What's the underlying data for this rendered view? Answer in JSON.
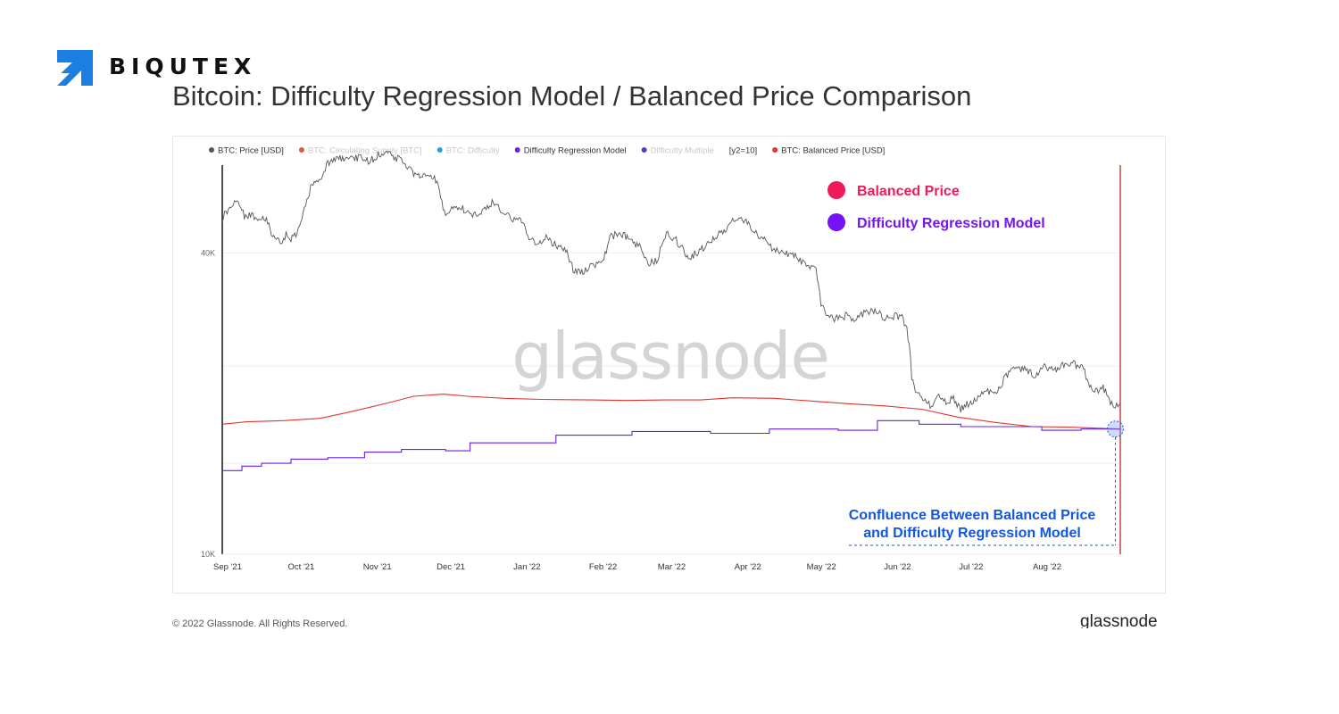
{
  "brand": {
    "name": "BIQUTEX",
    "accent": "#1a7fe0"
  },
  "page": {
    "title": "Bitcoin: Difficulty Regression Model / Balanced Price Comparison"
  },
  "footer": {
    "copyright": "© 2022 Glassnode. All Rights Reserved.",
    "brand": "glassnode"
  },
  "chart_data": {
    "type": "line",
    "title": "Bitcoin: Difficulty Regression Model / Balanced Price Comparison",
    "xlabel": "",
    "ylabel": "",
    "y_scale": "log",
    "ylim": [
      10000,
      60000
    ],
    "y_ticks": [
      {
        "value": 10000,
        "label": "10K"
      },
      {
        "value": 40000,
        "label": "40K"
      }
    ],
    "x_range": [
      0,
      366
    ],
    "x_ticks": [
      {
        "day": 0,
        "label": "Sep '21"
      },
      {
        "day": 30,
        "label": "Oct '21"
      },
      {
        "day": 61,
        "label": "Nov '21"
      },
      {
        "day": 91,
        "label": "Dec '21"
      },
      {
        "day": 122,
        "label": "Jan '22"
      },
      {
        "day": 153,
        "label": "Feb '22"
      },
      {
        "day": 181,
        "label": "Mar '22"
      },
      {
        "day": 212,
        "label": "Apr '22"
      },
      {
        "day": 242,
        "label": "May '22"
      },
      {
        "day": 273,
        "label": "Jun '22"
      },
      {
        "day": 303,
        "label": "Jul '22"
      },
      {
        "day": 334,
        "label": "Aug '22"
      }
    ],
    "legend": [
      {
        "label": "BTC: Price [USD]",
        "color": "#555555",
        "muted": false
      },
      {
        "label": "BTC: Circulating Supply [BTC]",
        "color": "#e0573a",
        "muted": true
      },
      {
        "label": "BTC: Difficulty",
        "color": "#2a9fd8",
        "muted": true
      },
      {
        "label": "Difficulty Regression Model",
        "color": "#6a1fe8",
        "muted": false
      },
      {
        "label": "Difficulty Multiple",
        "color": "#4b3fc8",
        "muted": true
      },
      {
        "label": "[y2=10]",
        "color": "",
        "muted": false
      },
      {
        "label": "BTC: Balanced Price [USD]",
        "color": "#e3342f",
        "muted": false
      }
    ],
    "series": [
      {
        "name": "BTC: Price [USD]",
        "color": "#555555",
        "points": [
          [
            0,
            47000
          ],
          [
            3,
            49500
          ],
          [
            6,
            50800
          ],
          [
            9,
            47500
          ],
          [
            12,
            48000
          ],
          [
            15,
            46500
          ],
          [
            18,
            46800
          ],
          [
            20,
            43800
          ],
          [
            22,
            42500
          ],
          [
            24,
            41800
          ],
          [
            26,
            43500
          ],
          [
            28,
            42500
          ],
          [
            30,
            43700
          ],
          [
            33,
            48000
          ],
          [
            36,
            54000
          ],
          [
            40,
            56500
          ],
          [
            44,
            61500
          ],
          [
            48,
            62000
          ],
          [
            52,
            61500
          ],
          [
            56,
            62000
          ],
          [
            60,
            61000
          ],
          [
            64,
            63000
          ],
          [
            67,
            64200
          ],
          [
            70,
            62500
          ],
          [
            74,
            60500
          ],
          [
            78,
            57500
          ],
          [
            81,
            57000
          ],
          [
            84,
            57500
          ],
          [
            87,
            56000
          ],
          [
            91,
            47500
          ],
          [
            94,
            49500
          ],
          [
            98,
            49000
          ],
          [
            102,
            47800
          ],
          [
            106,
            48500
          ],
          [
            110,
            50500
          ],
          [
            114,
            48500
          ],
          [
            118,
            47000
          ],
          [
            122,
            46800
          ],
          [
            125,
            43000
          ],
          [
            128,
            42000
          ],
          [
            132,
            42800
          ],
          [
            136,
            41500
          ],
          [
            140,
            40500
          ],
          [
            143,
            37000
          ],
          [
            147,
            36800
          ],
          [
            151,
            38000
          ],
          [
            155,
            38200
          ],
          [
            158,
            43000
          ],
          [
            162,
            44000
          ],
          [
            166,
            42500
          ],
          [
            170,
            41200
          ],
          [
            174,
            38300
          ],
          [
            177,
            38500
          ],
          [
            181,
            43800
          ],
          [
            185,
            42500
          ],
          [
            190,
            39200
          ],
          [
            195,
            40500
          ],
          [
            200,
            42500
          ],
          [
            205,
            44800
          ],
          [
            210,
            47200
          ],
          [
            213,
            46700
          ],
          [
            217,
            44000
          ],
          [
            221,
            42800
          ],
          [
            225,
            40500
          ],
          [
            229,
            40000
          ],
          [
            233,
            39800
          ],
          [
            236,
            38500
          ],
          [
            240,
            37500
          ],
          [
            242,
            37000
          ],
          [
            244,
            31500
          ],
          [
            246,
            30500
          ],
          [
            250,
            29500
          ],
          [
            254,
            30000
          ],
          [
            258,
            29300
          ],
          [
            262,
            30500
          ],
          [
            266,
            30800
          ],
          [
            270,
            29500
          ],
          [
            274,
            30000
          ],
          [
            277,
            29800
          ],
          [
            279,
            28000
          ],
          [
            280,
            26500
          ],
          [
            281,
            22500
          ],
          [
            283,
            21000
          ],
          [
            285,
            20800
          ],
          [
            287,
            20000
          ],
          [
            289,
            19800
          ],
          [
            292,
            20800
          ],
          [
            295,
            20000
          ],
          [
            298,
            20500
          ],
          [
            301,
            19500
          ],
          [
            304,
            20000
          ],
          [
            307,
            20500
          ],
          [
            311,
            21200
          ],
          [
            315,
            20800
          ],
          [
            319,
            22500
          ],
          [
            323,
            23500
          ],
          [
            327,
            23500
          ],
          [
            331,
            22800
          ],
          [
            335,
            23800
          ],
          [
            339,
            23300
          ],
          [
            343,
            24000
          ],
          [
            346,
            24100
          ],
          [
            349,
            23800
          ],
          [
            351,
            23500
          ],
          [
            353,
            21800
          ],
          [
            356,
            21300
          ],
          [
            359,
            21500
          ],
          [
            362,
            20200
          ],
          [
            364,
            19900
          ],
          [
            366,
            20000
          ]
        ]
      },
      {
        "name": "BTC: Balanced Price [USD]",
        "color": "#e3342f",
        "points": [
          [
            0,
            18200
          ],
          [
            10,
            18400
          ],
          [
            25,
            18500
          ],
          [
            40,
            18700
          ],
          [
            55,
            19400
          ],
          [
            68,
            20100
          ],
          [
            78,
            20700
          ],
          [
            90,
            20900
          ],
          [
            100,
            20700
          ],
          [
            115,
            20500
          ],
          [
            130,
            20400
          ],
          [
            150,
            20350
          ],
          [
            165,
            20300
          ],
          [
            181,
            20350
          ],
          [
            195,
            20350
          ],
          [
            208,
            20550
          ],
          [
            225,
            20500
          ],
          [
            240,
            20250
          ],
          [
            255,
            20000
          ],
          [
            270,
            19800
          ],
          [
            285,
            19500
          ],
          [
            300,
            18800
          ],
          [
            315,
            18350
          ],
          [
            330,
            18000
          ],
          [
            345,
            17950
          ],
          [
            366,
            17800
          ]
        ]
      },
      {
        "name": "Difficulty Regression Model",
        "color": "#6a1fe8",
        "points": [
          [
            0,
            14700
          ],
          [
            8,
            14700
          ],
          [
            8,
            15000
          ],
          [
            16,
            15000
          ],
          [
            16,
            15200
          ],
          [
            28,
            15200
          ],
          [
            28,
            15500
          ],
          [
            43,
            15500
          ],
          [
            43,
            15600
          ],
          [
            58,
            15600
          ],
          [
            58,
            16000
          ],
          [
            73,
            16000
          ],
          [
            73,
            16200
          ],
          [
            91,
            16200
          ],
          [
            91,
            16100
          ],
          [
            101,
            16100
          ],
          [
            101,
            16700
          ],
          [
            136,
            16700
          ],
          [
            136,
            17300
          ],
          [
            167,
            17300
          ],
          [
            167,
            17600
          ],
          [
            199,
            17600
          ],
          [
            199,
            17450
          ],
          [
            223,
            17450
          ],
          [
            223,
            17800
          ],
          [
            251,
            17800
          ],
          [
            251,
            17700
          ],
          [
            267,
            17700
          ],
          [
            267,
            18500
          ],
          [
            284,
            18500
          ],
          [
            284,
            18200
          ],
          [
            301,
            18200
          ],
          [
            301,
            18000
          ],
          [
            334,
            18000
          ],
          [
            334,
            17700
          ],
          [
            350,
            17700
          ],
          [
            350,
            17800
          ],
          [
            366,
            17800
          ]
        ]
      }
    ],
    "annotations": {
      "legend_inset": [
        {
          "label": "Balanced Price",
          "color": "#f0195a"
        },
        {
          "label": "Difficulty Regression Model",
          "color": "#7414f4"
        }
      ],
      "watermark": "glassnode",
      "confluence_lines": [
        "Confluence Between Balanced Price",
        "and Difficulty Regression Model"
      ],
      "confluence_color": "#1056e6",
      "confluence_point": {
        "day": 364,
        "value": 17800
      }
    }
  }
}
